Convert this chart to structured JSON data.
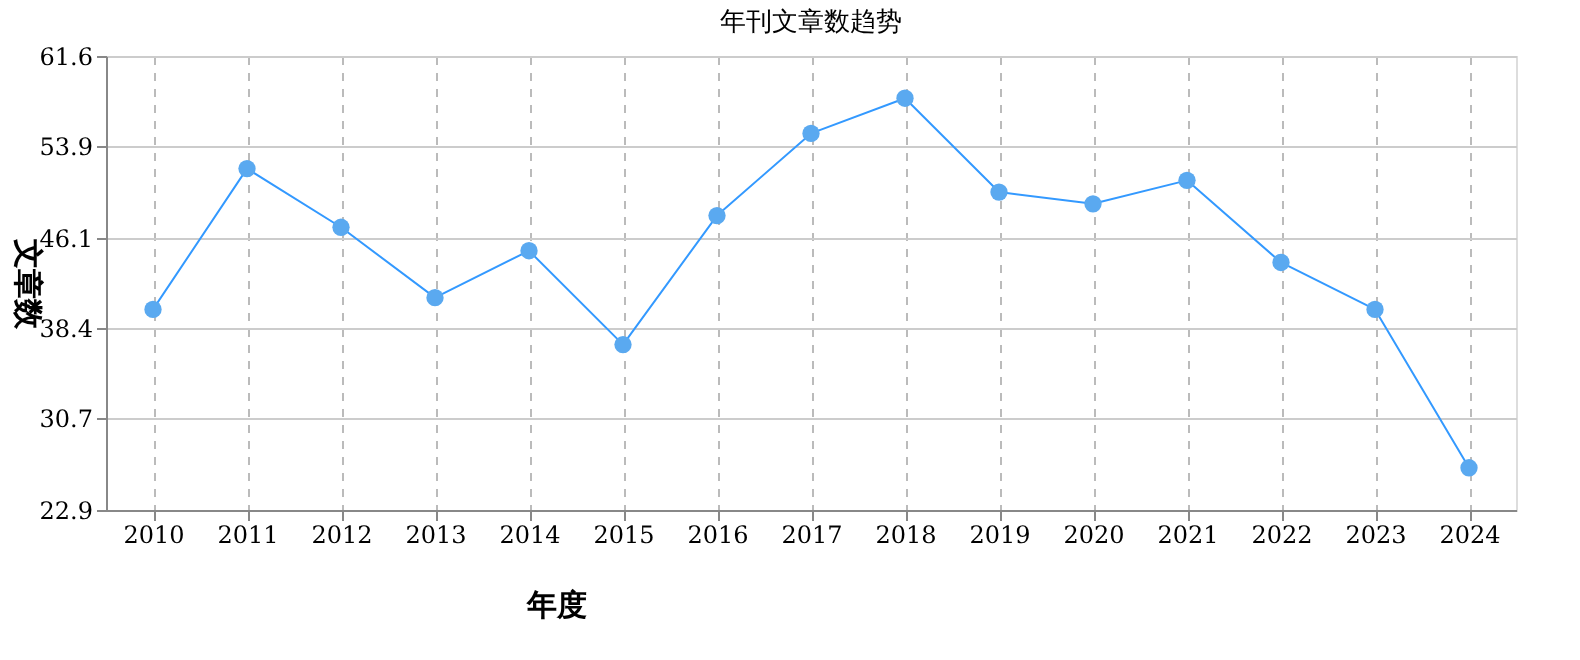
{
  "chart_data": {
    "type": "line",
    "title": "年刊文章数趋势",
    "xlabel": "年度",
    "ylabel": "文章数",
    "categories": [
      "2010",
      "2011",
      "2012",
      "2013",
      "2014",
      "2015",
      "2016",
      "2017",
      "2018",
      "2019",
      "2020",
      "2021",
      "2022",
      "2023",
      "2024"
    ],
    "series": [
      {
        "color": "#3399ff",
        "values": [
          40,
          52,
          47,
          41,
          45,
          37,
          48,
          55,
          58,
          50,
          49,
          51,
          44,
          40,
          26.5
        ]
      }
    ],
    "ylim": [
      22.9,
      61.6
    ],
    "yticks": [
      22.9,
      30.7,
      38.4,
      46.1,
      53.9,
      61.6
    ],
    "grid": true,
    "marker": "circle",
    "line_style": "solid"
  }
}
